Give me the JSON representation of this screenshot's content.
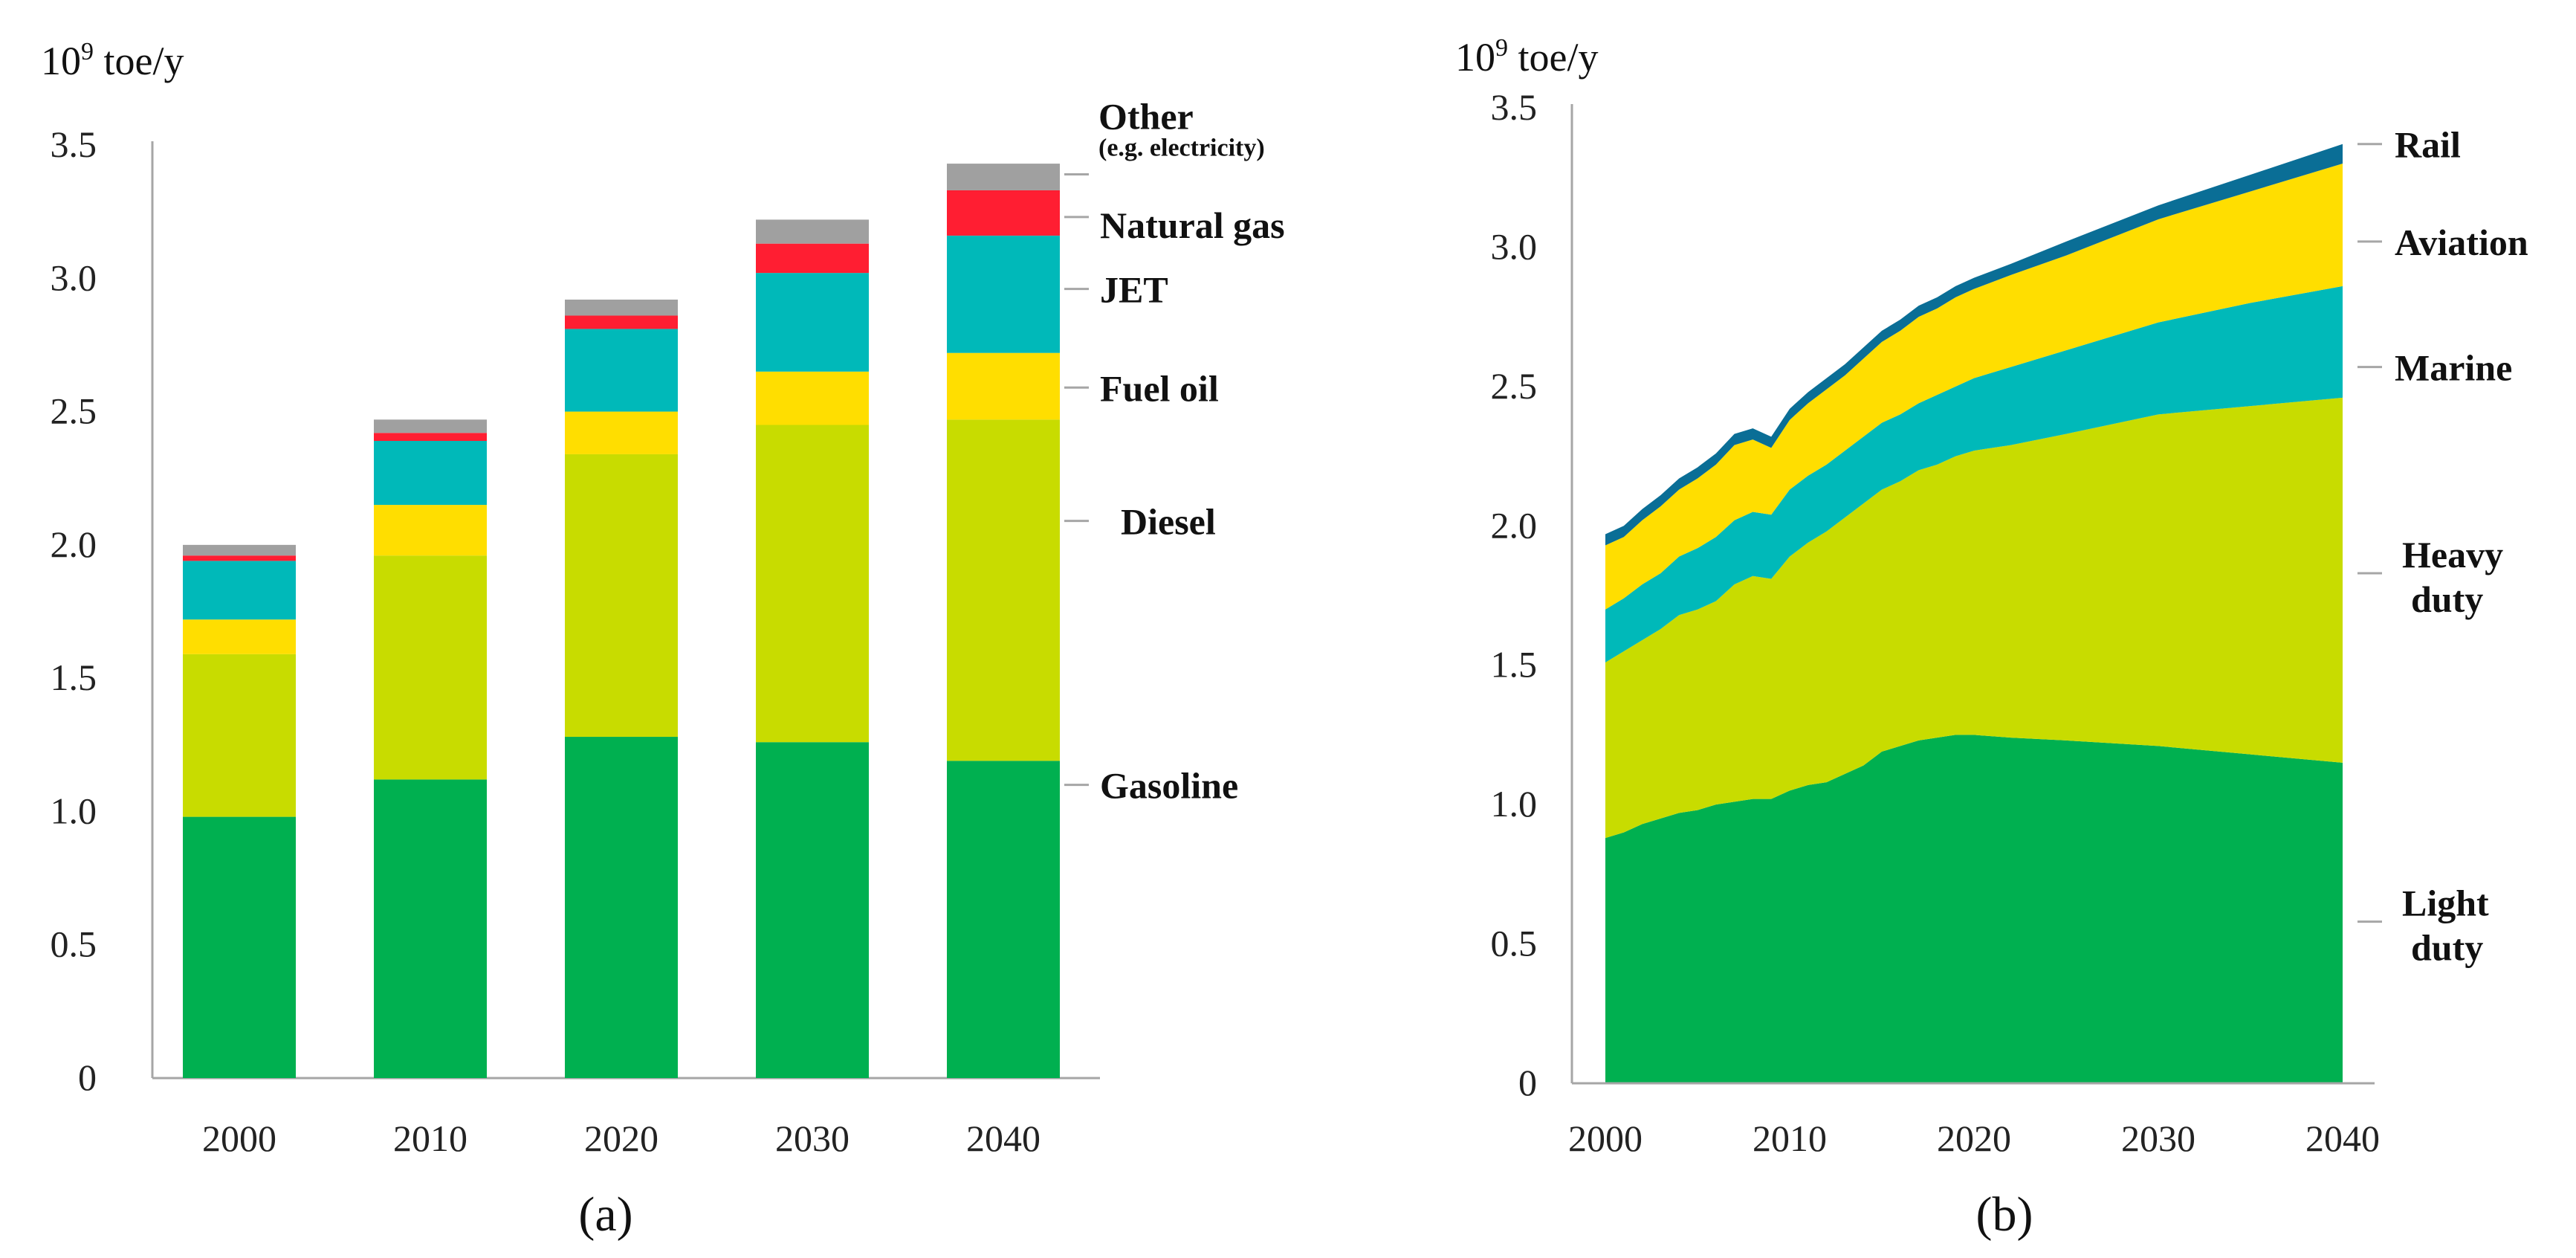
{
  "chart_data": [
    {
      "type": "bar",
      "stacked": true,
      "panel_label": "(a)",
      "y_unit": "10⁹ toe/y",
      "ylim": [
        0,
        3.5
      ],
      "yticks": [
        "0",
        "0.5",
        "1.0",
        "1.5",
        "2.0",
        "2.5",
        "3.0",
        "3.5"
      ],
      "categories": [
        "2000",
        "2010",
        "2020",
        "2030",
        "2040"
      ],
      "grid": false,
      "legend_placement": "right (labels beside last bar)",
      "series": [
        {
          "name": "Gasoline",
          "color": "#00b050",
          "values": [
            0.98,
            1.12,
            1.28,
            1.26,
            1.19
          ]
        },
        {
          "name": "Diesel",
          "color": "#c8dc00",
          "values": [
            0.61,
            0.84,
            1.06,
            1.19,
            1.28
          ]
        },
        {
          "name": "Fuel  oil",
          "color": "#ffde00",
          "values": [
            0.13,
            0.19,
            0.16,
            0.2,
            0.25
          ]
        },
        {
          "name": "JET",
          "color": "#00b9b9",
          "values": [
            0.22,
            0.24,
            0.31,
            0.37,
            0.44
          ]
        },
        {
          "name": "Natural gas",
          "color": "#ff1e32",
          "values": [
            0.02,
            0.03,
            0.05,
            0.11,
            0.17
          ]
        },
        {
          "name": "Other",
          "sublabel": "(e.g. electricity)",
          "color": "#a0a0a0",
          "values": [
            0.04,
            0.05,
            0.06,
            0.09,
            0.1
          ]
        }
      ]
    },
    {
      "type": "area",
      "stacked": true,
      "panel_label": "(b)",
      "y_unit": "10⁹ toe/y",
      "ylim": [
        0,
        3.5
      ],
      "yticks": [
        "0",
        "0.5",
        "1.0",
        "1.5",
        "2.0",
        "2.5",
        "3.0",
        "3.5"
      ],
      "xlim": [
        2000,
        2040
      ],
      "xticks": [
        "2000",
        "2010",
        "2020",
        "2030",
        "2040"
      ],
      "grid": false,
      "legend_placement": "right (labels beside area ends)",
      "x": [
        2000,
        2001,
        2002,
        2003,
        2004,
        2005,
        2006,
        2007,
        2008,
        2009,
        2010,
        2011,
        2012,
        2013,
        2014,
        2015,
        2016,
        2017,
        2018,
        2019,
        2020,
        2022,
        2025,
        2030,
        2035,
        2040
      ],
      "series": [
        {
          "name": "Light duty",
          "color": "#00b050",
          "values": [
            0.88,
            0.9,
            0.93,
            0.95,
            0.97,
            0.98,
            1.0,
            1.01,
            1.02,
            1.02,
            1.05,
            1.07,
            1.08,
            1.11,
            1.14,
            1.19,
            1.21,
            1.23,
            1.24,
            1.25,
            1.25,
            1.24,
            1.23,
            1.21,
            1.18,
            1.15
          ]
        },
        {
          "name": "Heavy duty",
          "color": "#c8dc00",
          "values": [
            0.63,
            0.65,
            0.66,
            0.68,
            0.71,
            0.72,
            0.73,
            0.78,
            0.8,
            0.79,
            0.84,
            0.87,
            0.9,
            0.92,
            0.94,
            0.94,
            0.95,
            0.97,
            0.98,
            1.0,
            1.02,
            1.05,
            1.1,
            1.19,
            1.25,
            1.31
          ]
        },
        {
          "name": "Marine",
          "color": "#00b9b9",
          "values": [
            0.19,
            0.19,
            0.2,
            0.2,
            0.21,
            0.22,
            0.23,
            0.23,
            0.23,
            0.23,
            0.24,
            0.24,
            0.24,
            0.24,
            0.24,
            0.24,
            0.24,
            0.24,
            0.25,
            0.25,
            0.26,
            0.28,
            0.3,
            0.33,
            0.37,
            0.4
          ]
        },
        {
          "name": "Aviation",
          "color": "#ffde00",
          "values": [
            0.23,
            0.22,
            0.23,
            0.24,
            0.24,
            0.25,
            0.26,
            0.27,
            0.26,
            0.24,
            0.25,
            0.26,
            0.27,
            0.27,
            0.28,
            0.29,
            0.3,
            0.31,
            0.31,
            0.32,
            0.32,
            0.33,
            0.34,
            0.37,
            0.4,
            0.44
          ]
        },
        {
          "name": "Rail",
          "color": "#0a6e96",
          "values": [
            0.04,
            0.04,
            0.04,
            0.04,
            0.04,
            0.04,
            0.04,
            0.04,
            0.04,
            0.04,
            0.04,
            0.04,
            0.04,
            0.04,
            0.04,
            0.04,
            0.04,
            0.04,
            0.04,
            0.04,
            0.04,
            0.04,
            0.05,
            0.05,
            0.06,
            0.07
          ]
        }
      ]
    }
  ]
}
